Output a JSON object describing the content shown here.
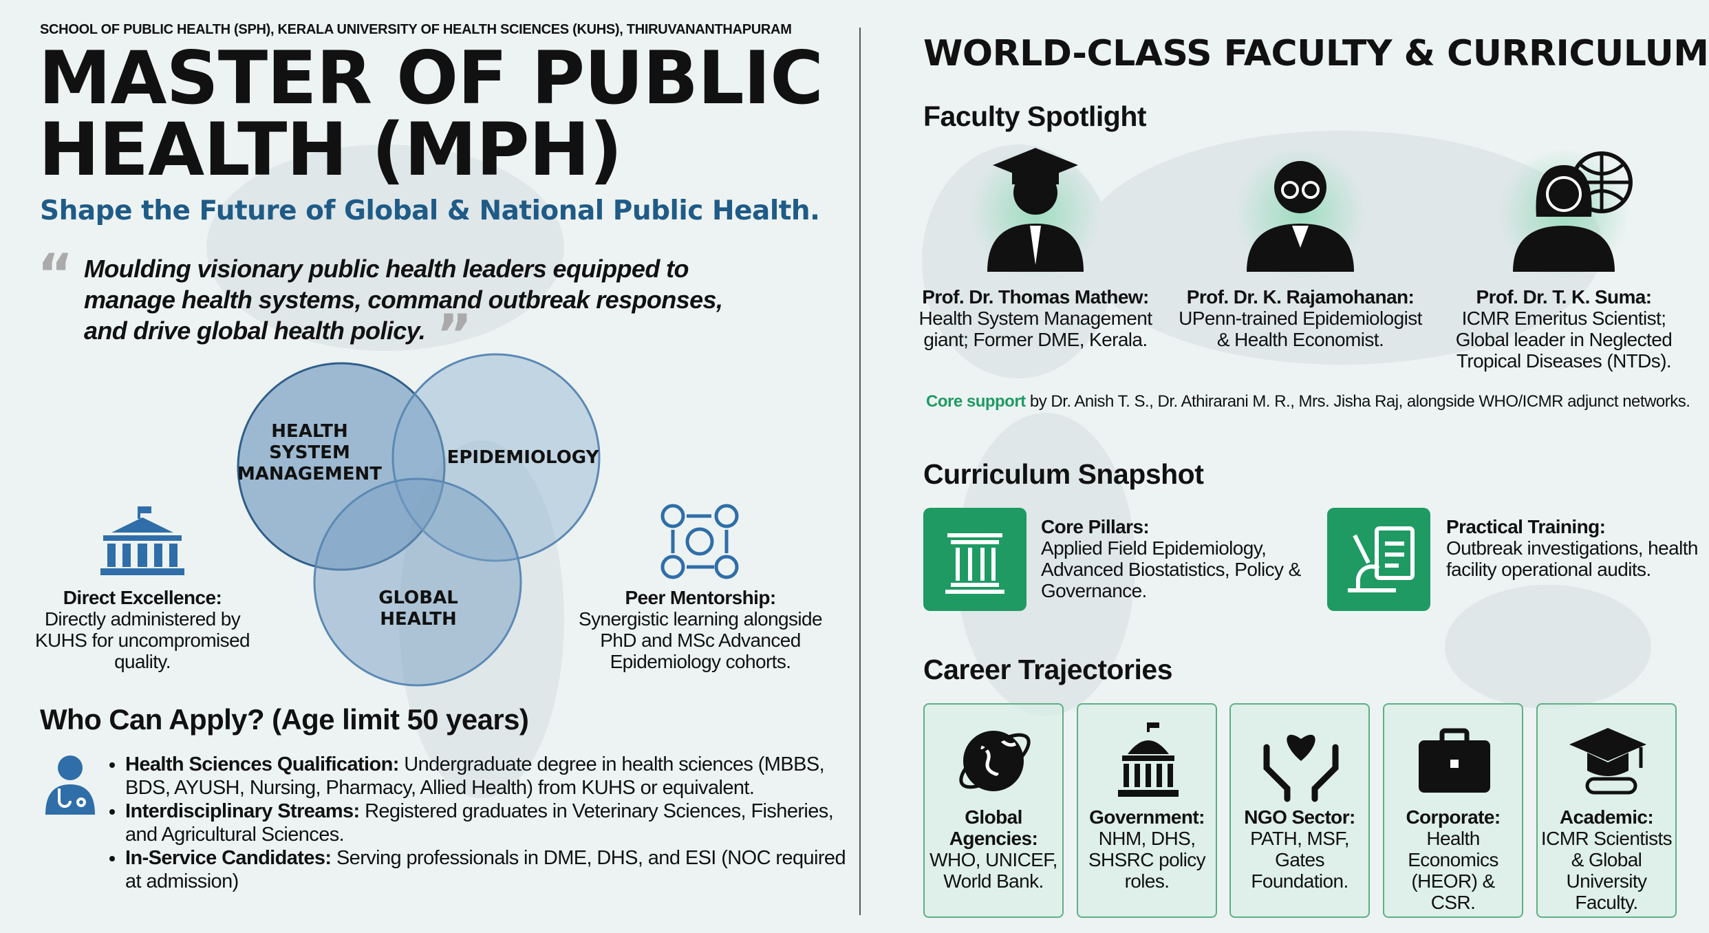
{
  "header": {
    "institution": "SCHOOL OF PUBLIC HEALTH (SPH), KERALA UNIVERSITY OF HEALTH SCIENCES (KUHS), THIRUVANANTHAPURAM",
    "title": "MASTER OF PUBLIC HEALTH (MPH)",
    "tagline": "Shape the Future of Global & National Public Health.",
    "quote": "Moulding visionary public health leaders equipped to manage health systems, command outbreak responses, and drive global health policy."
  },
  "venn": [
    "HEALTH SYSTEM MANAGEMENT",
    "EPIDEMIOLOGY",
    "GLOBAL HEALTH"
  ],
  "features": [
    {
      "title": "Direct Excellence:",
      "text": "Directly administered by KUHS for uncompromised quality."
    },
    {
      "title": "Peer Mentorship:",
      "text": "Synergistic learning alongside PhD and MSc Advanced Epidemiology cohorts."
    }
  ],
  "eligibility": {
    "title": "Who Can Apply? (Age limit 50 years)",
    "items": [
      {
        "label": "Health Sciences Qualification:",
        "text": "Undergraduate degree in health sciences (MBBS, BDS, AYUSH, Nursing, Pharmacy, Allied Health) from KUHS or equivalent."
      },
      {
        "label": "Interdisciplinary Streams:",
        "text": "Registered graduates in Veterinary Sciences, Fisheries, and Agricultural Sciences."
      },
      {
        "label": "In-Service Candidates:",
        "text": "Serving professionals in DME, DHS, and ESI (NOC required at admission)"
      }
    ]
  },
  "right": {
    "title": "WORLD-CLASS FACULTY & CURRICULUM",
    "faculty_heading": "Faculty Spotlight",
    "faculty": [
      {
        "name": "Prof. Dr. Thomas Mathew:",
        "bio": "Health System Management giant; Former DME, Kerala."
      },
      {
        "name": "Prof. Dr. K. Rajamohanan:",
        "bio": "UPenn-trained Epidemiologist & Health Economist."
      },
      {
        "name": "Prof. Dr. T. K. Suma:",
        "bio": "ICMR Emeritus Scientist; Global leader in Neglected Tropical Diseases (NTDs)."
      }
    ],
    "core_support": {
      "highlight": "Core support",
      "text": "by Dr. Anish T. S., Dr. Athirarani M. R., Mrs. Jisha Raj, alongside WHO/ICMR adjunct networks."
    },
    "curriculum_heading": "Curriculum Snapshot",
    "curriculum": [
      {
        "title": "Core Pillars:",
        "text": "Applied Field Epidemiology, Advanced Biostatistics, Policy & Governance."
      },
      {
        "title": "Practical Training:",
        "text": "Outbreak investigations, health facility operational audits."
      }
    ],
    "career_heading": "Career Trajectories",
    "careers": [
      {
        "title": "Global Agencies:",
        "text": "WHO, UNICEF, World Bank."
      },
      {
        "title": "Government:",
        "text": "NHM, DHS, SHSRC policy roles."
      },
      {
        "title": "NGO Sector:",
        "text": "PATH, MSF, Gates Foundation."
      },
      {
        "title": "Corporate:",
        "text": "Health Economics (HEOR) & CSR."
      },
      {
        "title": "Academic:",
        "text": "ICMR Scientists & Global University Faculty."
      }
    ]
  }
}
